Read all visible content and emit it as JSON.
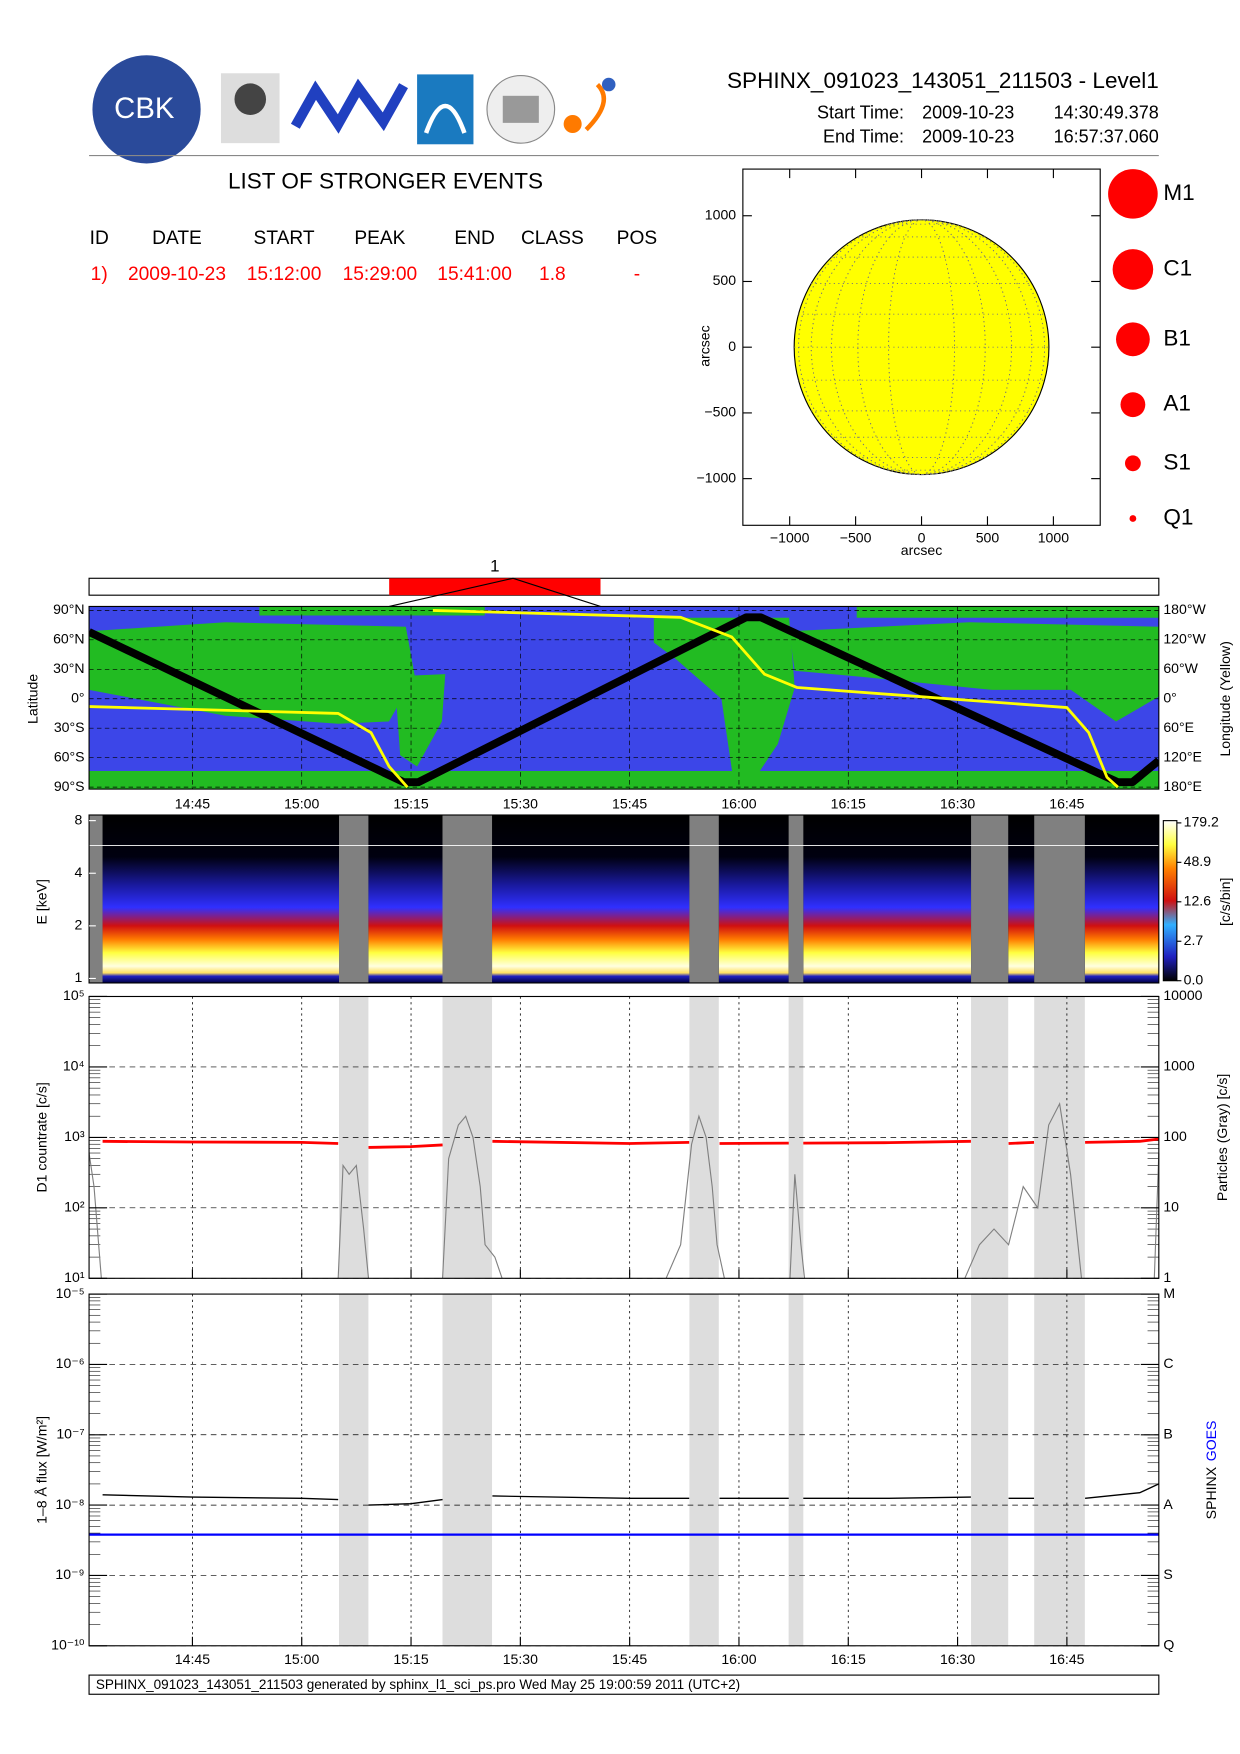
{
  "header": {
    "title": "SPHINX_091023_143051_211503 - Level1",
    "start_label": "Start Time:",
    "start_date": "2009-10-23",
    "start_time": "14:30:49.378",
    "end_label": "End Time:",
    "end_date": "2009-10-23",
    "end_time": "16:57:37.060",
    "logo_text": "CBK"
  },
  "events": {
    "title": "LIST OF STRONGER EVENTS",
    "columns": [
      "ID",
      "DATE",
      "START",
      "PEAK",
      "END",
      "CLASS",
      "POS"
    ],
    "rows": [
      [
        "1)",
        "2009-10-23",
        "15:12:00",
        "15:29:00",
        "15:41:00",
        "1.8",
        "-"
      ]
    ]
  },
  "footer": "SPHINX_091023_143051_211503 generated by sphinx_l1_sci_ps.pro Wed May 25 19:00:59 2011 (UTC+2)",
  "chart_data": [
    {
      "type": "disk",
      "xlabel": "arcsec",
      "ylabel": "arcsec",
      "xlim": [
        -1355,
        1355
      ],
      "ylim": [
        -1355,
        1355
      ],
      "xticks": [
        {
          "value": -1000,
          "label": "−1000"
        },
        {
          "value": -500,
          "label": "−500"
        },
        0,
        500,
        1000
      ],
      "yticks": [
        {
          "value": -1000,
          "label": "−1000"
        },
        {
          "value": -500,
          "label": "−500"
        },
        0,
        500,
        1000
      ],
      "radius": 966,
      "color": "#ffff00",
      "legend": [
        "M1",
        "C1",
        "B1",
        "A1",
        "S1",
        "Q1"
      ],
      "legend_color": "#ff0000"
    },
    {
      "type": "timeline",
      "labels": [
        "1"
      ],
      "start": [
        "15:12:00"
      ],
      "peak": [
        "15:29:00"
      ],
      "end": [
        "15:41:00"
      ],
      "color": "#ff0000"
    },
    {
      "type": "orbit",
      "ylabel": "Latitude",
      "y2label": "Longitude (Yellow)",
      "xlim": [
        "14:30:49",
        "16:57:37"
      ],
      "xticks": [
        "14:45",
        "15:00",
        "15:15",
        "15:30",
        "15:45",
        "16:00",
        "16:15",
        "16:30",
        "16:45"
      ],
      "ylim": [
        -92,
        94
      ],
      "yticks": [
        {
          "value": 90,
          "label": "90°N"
        },
        {
          "value": 60,
          "label": "60°N"
        },
        {
          "value": 30,
          "label": "30°N"
        },
        {
          "value": 0,
          "label": "0°"
        },
        {
          "value": -30,
          "label": "30°S"
        },
        {
          "value": -60,
          "label": "60°S"
        },
        {
          "value": -90,
          "label": "90°S"
        }
      ],
      "y2lim": [
        -184,
        188
      ],
      "y2ticks": [
        {
          "value": 180,
          "label": "180°W"
        },
        {
          "value": 120,
          "label": "120°W"
        },
        {
          "value": 60,
          "label": "60°W"
        },
        {
          "value": 0,
          "label": "0°"
        },
        {
          "value": -60,
          "label": "60°E"
        },
        {
          "value": -120,
          "label": "120°E"
        },
        {
          "value": -180,
          "label": "180°E"
        }
      ],
      "grid": true,
      "series": [
        {
          "color": "#000000",
          "x": [
            "14:30:49",
            "15:14:00",
            "15:16:00",
            "16:01:00",
            "16:03:00",
            "16:52:00",
            "16:54:00",
            "16:57:37"
          ],
          "values": [
            68,
            -85,
            -85,
            83,
            83,
            -85,
            -85,
            -63
          ]
        },
        {
          "color": "#ffff00",
          "axis": "y2",
          "x": [
            "14:30:49",
            "15:05:00",
            "15:09:30",
            "15:12:00",
            "15:14:30",
            "15:16:00",
            "15:18:00",
            "15:52:00",
            "15:59:00",
            "16:03:30",
            "16:08:00",
            "16:45:00",
            "16:48:00",
            "16:50:30",
            "16:52:00"
          ],
          "values": [
            -16,
            -30,
            -69,
            -138,
            -180,
            null,
            180,
            166,
            126,
            50,
            23,
            -18,
            -69,
            -160,
            -180
          ]
        }
      ]
    },
    {
      "type": "spectrogram",
      "ylabel": "E [keV]",
      "ylim": [
        1,
        8
      ],
      "yticks": [
        1,
        2,
        4,
        8
      ],
      "log": true,
      "colorbar_ticks": [
        {
          "value": 0,
          "label": "0.0"
        },
        2.7,
        12.6,
        48.9,
        179.2
      ],
      "colorbar_label": "[c/s/bin]",
      "gaps": [
        [
          "14:30:49",
          "14:32:40"
        ],
        [
          "15:05:07",
          "15:09:09"
        ],
        [
          "15:19:19",
          "15:26:07"
        ],
        [
          "15:53:12",
          "15:57:14"
        ],
        [
          "16:06:49",
          "16:08:50"
        ],
        [
          "16:31:51",
          "16:36:57"
        ],
        [
          "16:40:31",
          "16:47:28"
        ]
      ]
    },
    {
      "type": "line",
      "log": true,
      "ylabel": "D1 countrate [c/s]",
      "y2label": "Particles (Gray) [c/s]",
      "ylim": [
        10,
        100000
      ],
      "yticks": [
        {
          "value": 10,
          "label": "10¹"
        },
        {
          "value": 100,
          "label": "10²"
        },
        {
          "value": 1000,
          "label": "10³"
        },
        {
          "value": 10000,
          "label": "10⁴"
        },
        {
          "value": 100000,
          "label": "10⁵"
        }
      ],
      "y2lim": [
        1,
        10000
      ],
      "y2ticks": [
        1,
        10,
        100,
        1000,
        10000
      ],
      "grid": true,
      "series": [
        {
          "color": "#ff0000",
          "x": [
            "14:32:40",
            "14:45:00",
            "15:00:00",
            "15:05:00",
            "15:05:00",
            "15:09:10",
            "15:15:00",
            "15:19:20",
            "15:19:20",
            "15:26:10",
            "15:45:00",
            "15:53:10",
            "15:53:10",
            "15:57:20",
            "16:06:50",
            "16:06:50",
            "16:08:50",
            "16:20:00",
            "16:31:50",
            "16:31:50",
            "16:37:00",
            "16:40:30",
            "16:40:30",
            "16:47:30",
            "16:55:00",
            "16:57:37"
          ],
          "values": [
            880,
            860,
            850,
            820,
            null,
            720,
            740,
            780,
            null,
            880,
            820,
            850,
            null,
            820,
            830,
            null,
            830,
            840,
            880,
            null,
            820,
            850,
            null,
            850,
            880,
            950
          ]
        },
        {
          "color": "#808080",
          "axis": "y2",
          "x": [
            "14:30:49",
            "14:31:30",
            "14:32:30",
            "14:32:30",
            "15:05:00",
            "15:05:40",
            "15:06:30",
            "15:07:30",
            "15:08:30",
            "15:09:10",
            "15:09:10",
            "15:19:20",
            "15:20:10",
            "15:21:30",
            "15:22:30",
            "15:23:30",
            "15:24:30",
            "15:25:10",
            "15:26:30",
            "15:27:30",
            "15:27:30",
            "15:50:00",
            "15:52:00",
            "15:53:30",
            "15:54:30",
            "15:55:30",
            "15:56:20",
            "15:57:00",
            "15:58:00",
            "15:58:00",
            "16:07:00",
            "16:07:40",
            "16:08:30",
            "16:09:00",
            "16:09:00",
            "16:31:00",
            "16:33:00",
            "16:35:00",
            "16:37:00",
            "16:39:00",
            "16:41:00",
            "16:42:30",
            "16:44:00",
            "16:45:30",
            "16:47:00",
            "16:47:00",
            "16:57:00",
            "16:57:37"
          ],
          "values": [
            60,
            20,
            1,
            null,
            1,
            40,
            30,
            40,
            5,
            1,
            null,
            1,
            50,
            150,
            200,
            100,
            20,
            3,
            2,
            1,
            null,
            1,
            3,
            80,
            200,
            100,
            20,
            3,
            1,
            null,
            1,
            30,
            3,
            1,
            null,
            1,
            3,
            5,
            3,
            20,
            10,
            150,
            300,
            30,
            1,
            null,
            1,
            60
          ]
        }
      ]
    },
    {
      "type": "line",
      "log": true,
      "ylabel": "1–8 Å flux [W/m²]",
      "xlim": [
        "14:30:49",
        "16:57:37"
      ],
      "xticks": [
        "14:45",
        "15:00",
        "15:15",
        "15:30",
        "15:45",
        "16:00",
        "16:15",
        "16:30",
        "16:45"
      ],
      "ylim": [
        1e-10,
        1e-05
      ],
      "yticks": [
        {
          "value": 1e-10,
          "label": "10⁻¹⁰"
        },
        {
          "value": 1e-09,
          "label": "10⁻⁹"
        },
        {
          "value": 1e-08,
          "label": "10⁻⁸"
        },
        {
          "value": 1e-07,
          "label": "10⁻⁷"
        },
        {
          "value": 1e-06,
          "label": "10⁻⁶"
        },
        {
          "value": 1e-05,
          "label": "10⁻⁵"
        }
      ],
      "y2lim": [
        1e-10,
        1e-05
      ],
      "y2ticks": [
        {
          "value": 1e-10,
          "label": "Q"
        },
        {
          "value": 1e-09,
          "label": "S"
        },
        {
          "value": 1e-08,
          "label": "A"
        },
        {
          "value": 1e-07,
          "label": "B"
        },
        {
          "value": 1e-06,
          "label": "C"
        },
        {
          "value": 1e-05,
          "label": "M"
        }
      ],
      "grid": true,
      "series": [
        {
          "name": "SPHINX",
          "color": "#000000",
          "x": [
            "14:32:40",
            "14:45:00",
            "15:00:00",
            "15:05:00",
            "15:05:00",
            "15:09:10",
            "15:15:00",
            "15:19:20",
            "15:19:20",
            "15:26:10",
            "15:45:00",
            "15:53:10",
            "15:53:10",
            "15:57:20",
            "16:06:50",
            "16:06:50",
            "16:08:50",
            "16:20:00",
            "16:31:50",
            "16:31:50",
            "16:37:00",
            "16:40:30",
            "16:40:30",
            "16:47:30",
            "16:55:00",
            "16:57:37"
          ],
          "values": [
            1.4e-08,
            1.3e-08,
            1.25e-08,
            1.2e-08,
            null,
            1e-08,
            1.05e-08,
            1.2e-08,
            null,
            1.35e-08,
            1.25e-08,
            1.25e-08,
            null,
            1.25e-08,
            1.25e-08,
            null,
            1.25e-08,
            1.25e-08,
            1.3e-08,
            null,
            1.25e-08,
            1.25e-08,
            null,
            1.25e-08,
            1.5e-08,
            2e-08
          ]
        },
        {
          "name": "GOES",
          "color": "#0000ff",
          "x": [
            "14:30:49",
            "16:57:37"
          ],
          "values": [
            3.8e-09,
            3.8e-09
          ]
        }
      ]
    }
  ]
}
